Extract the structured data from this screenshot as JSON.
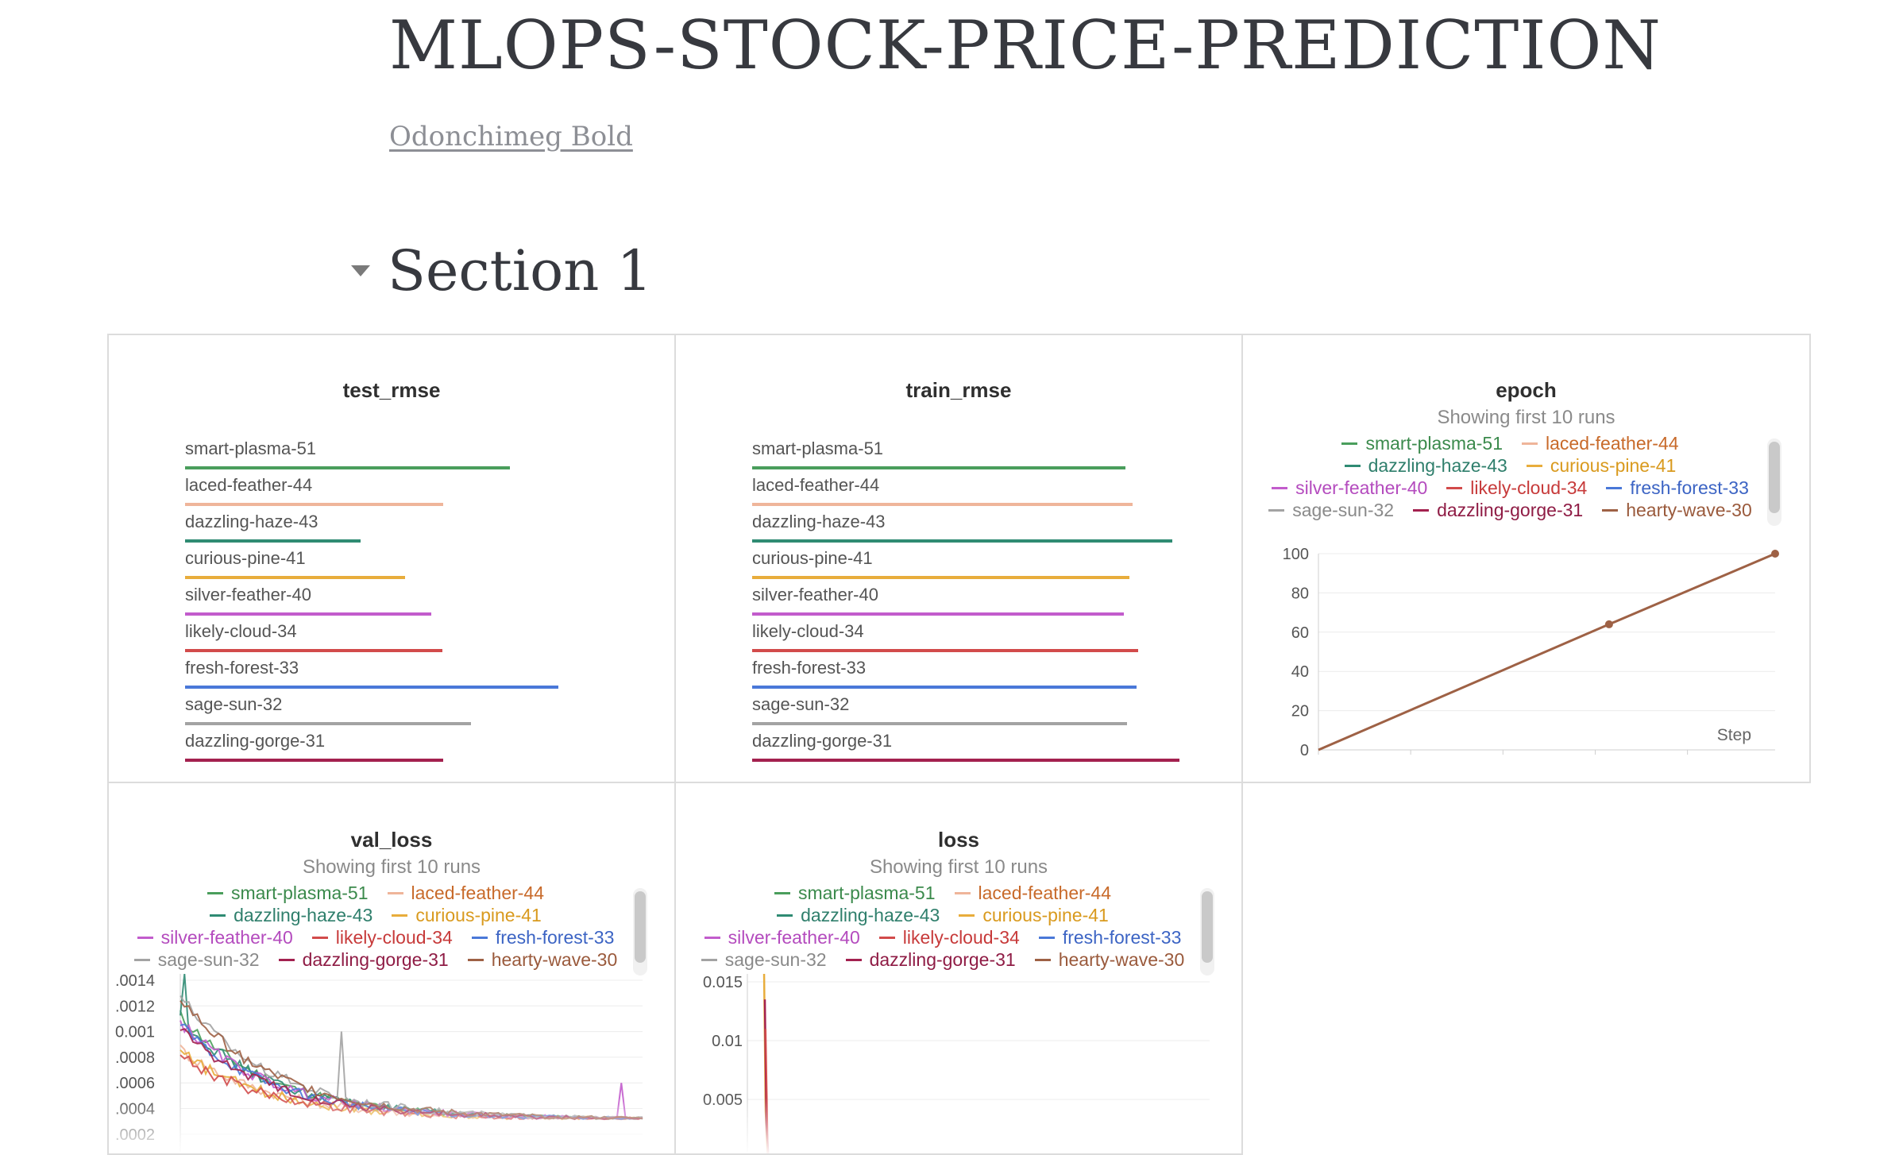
{
  "report": {
    "title": "MLOPS-STOCK-PRICE-PREDICTION",
    "author": "Odonchimeg Bold",
    "section_title": "Section 1"
  },
  "runs": [
    {
      "name": "smart-plasma-51",
      "color": "#4a9e5c"
    },
    {
      "name": "laced-feather-44",
      "color": "#efb59a"
    },
    {
      "name": "dazzling-haze-43",
      "color": "#2f8b73"
    },
    {
      "name": "curious-pine-41",
      "color": "#e8ad3c"
    },
    {
      "name": "silver-feather-40",
      "color": "#c25ccc"
    },
    {
      "name": "likely-cloud-34",
      "color": "#d24b4b"
    },
    {
      "name": "fresh-forest-33",
      "color": "#4a78d8"
    },
    {
      "name": "sage-sun-32",
      "color": "#a3a3a3"
    },
    {
      "name": "dazzling-gorge-31",
      "color": "#a3214f"
    },
    {
      "name": "hearty-wave-30",
      "color": "#9e6145"
    }
  ],
  "legend_text_colors": {
    "smart-plasma-51": "#3b8a4c",
    "laced-feather-44": "#c86a2a",
    "dazzling-haze-43": "#2f7f6c",
    "curious-pine-41": "#d99a1e",
    "silver-feather-40": "#b44bbe",
    "likely-cloud-34": "#c73a3a",
    "fresh-forest-33": "#3c64c4",
    "sage-sun-32": "#8a8a8a",
    "dazzling-gorge-31": "#8f1c45",
    "hearty-wave-30": "#9a5a3c"
  },
  "panels": {
    "test_rmse": {
      "title": "test_rmse",
      "chart_data": {
        "type": "bar",
        "categories": [
          "smart-plasma-51",
          "laced-feather-44",
          "dazzling-haze-43",
          "curious-pine-41",
          "silver-feather-40",
          "likely-cloud-34",
          "fresh-forest-33",
          "sage-sun-32",
          "dazzling-gorge-31"
        ],
        "values": [
          0.73,
          0.58,
          0.395,
          0.495,
          0.553,
          0.578,
          0.84,
          0.643,
          0.58
        ]
      }
    },
    "train_rmse": {
      "title": "train_rmse",
      "chart_data": {
        "type": "bar",
        "categories": [
          "smart-plasma-51",
          "laced-feather-44",
          "dazzling-haze-43",
          "curious-pine-41",
          "silver-feather-40",
          "likely-cloud-34",
          "fresh-forest-33",
          "sage-sun-32",
          "dazzling-gorge-31"
        ],
        "values": [
          0.84,
          0.855,
          0.945,
          0.848,
          0.835,
          0.868,
          0.865,
          0.843,
          0.96
        ]
      }
    },
    "epoch": {
      "title": "epoch",
      "subtitle": "Showing first 10 runs",
      "chart_data": {
        "type": "line",
        "xlabel": "Step",
        "xlim": [
          0,
          99
        ],
        "ylim": [
          0,
          100
        ],
        "xticks": [
          "0",
          "20",
          "40",
          "60",
          "80"
        ],
        "yticks": [
          "0",
          "20",
          "40",
          "60",
          "80",
          "100"
        ],
        "series": [
          {
            "name": "hearty-wave-30",
            "x": [
              0,
              63,
              99
            ],
            "y": [
              0,
              64,
              100
            ],
            "markers": [
              63,
              99
            ]
          }
        ]
      }
    },
    "val_loss": {
      "title": "val_loss",
      "subtitle": "Showing first 10 runs",
      "chart_data": {
        "type": "line",
        "yticks": [
          ".0014",
          ".0012",
          "0.001",
          ".0008",
          ".0006",
          ".0004",
          ".0002"
        ],
        "ylim": [
          0.0002,
          0.0015
        ],
        "series_shape": "decaying noisy curves for 10 runs starting near 0.0009-0.0014 and settling near 0.0003-0.0004; spike near 0.001 for sage-sun-32 around one third; late spike near 0.0006 for silver-feather-40"
      }
    },
    "loss": {
      "title": "loss",
      "subtitle": "Showing first 10 runs",
      "chart_data": {
        "type": "line",
        "yticks": [
          "0.015",
          "0.01",
          "0.005"
        ],
        "ylim": [
          0.0,
          0.016
        ],
        "series_shape": "initial spike near 0.016 for curious-pine-41 then rapid drop below 0.005"
      }
    }
  }
}
